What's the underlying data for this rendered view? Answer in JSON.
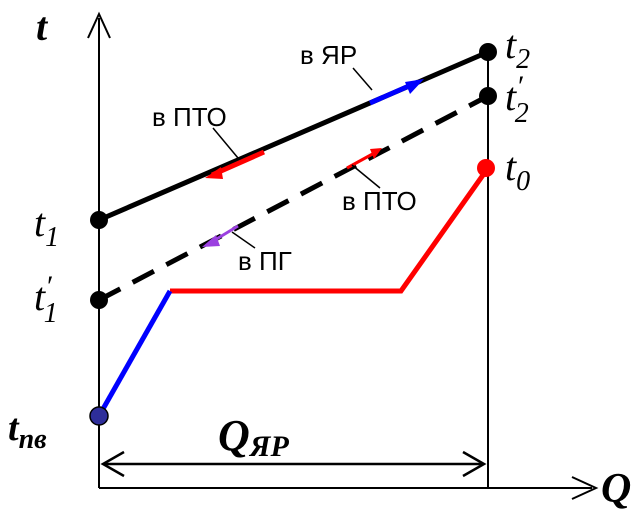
{
  "axes": {
    "y_label": "t",
    "x_label": "Q"
  },
  "temperature_labels": {
    "t1": {
      "base": "t",
      "sub": "1"
    },
    "t1_prime": {
      "base": "t",
      "sub": "1",
      "prime": "′"
    },
    "t2": {
      "base": "t",
      "sub": "2"
    },
    "t2_prime": {
      "base": "t",
      "sub": "2",
      "prime": "′"
    },
    "t0": {
      "base": "t",
      "sub": "0"
    },
    "t_pv": {
      "base": "t",
      "sub": "пв"
    }
  },
  "annotations": {
    "to_reactor": "в ЯР",
    "to_pto_upper": "в ПТО",
    "to_pto_lower": "в ПТО",
    "to_pg": "в ПГ"
  },
  "dimension": {
    "base": "Q",
    "sub": "ЯР"
  },
  "colors": {
    "line_black": "#000000",
    "line_red": "#ff0000",
    "line_blue": "#0000ff",
    "arrow_violet": "#9b40e0",
    "point_navy": "#2e2e9a"
  }
}
